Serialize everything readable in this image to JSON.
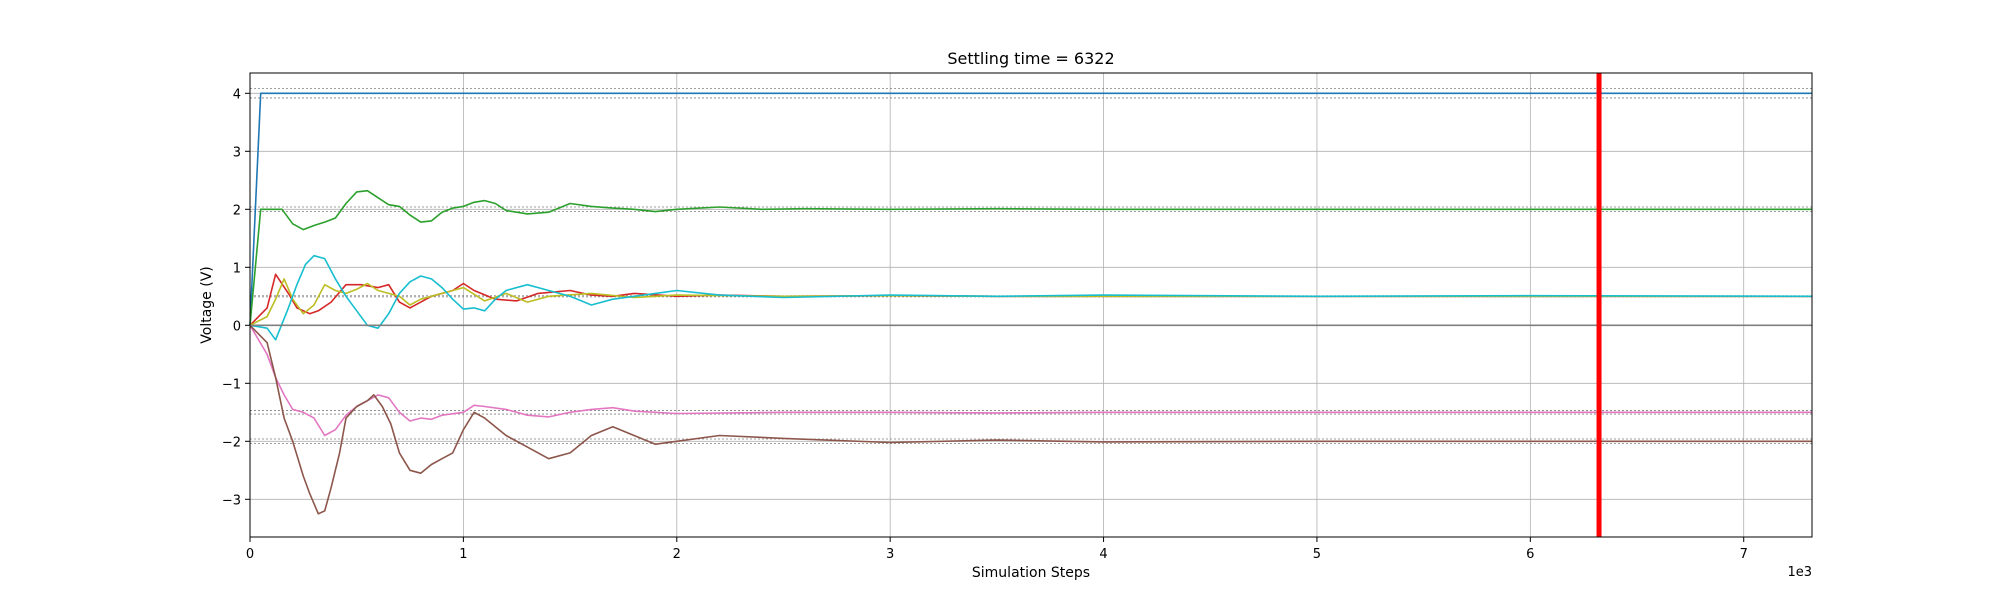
{
  "chart_data": {
    "type": "line",
    "title": "Settling time = 6322",
    "xlabel": "Simulation Steps",
    "ylabel": "Voltage (V)",
    "x_offset_label": "1e3",
    "xlim": [
      0,
      7.32
    ],
    "ylim": [
      -3.65,
      4.35
    ],
    "x_ticks": [
      0,
      1,
      2,
      3,
      4,
      5,
      6,
      7
    ],
    "y_ticks": [
      -3,
      -2,
      -1,
      0,
      1,
      2,
      3,
      4
    ],
    "x_tick_labels": [
      "0",
      "1",
      "2",
      "3",
      "4",
      "5",
      "6",
      "7"
    ],
    "y_tick_labels": [
      "−3",
      "−2",
      "−1",
      "0",
      "1",
      "2",
      "3",
      "4"
    ],
    "grid": true,
    "settling_time": 6.322,
    "settling_line_color": "#ff0000",
    "reference_levels": [
      {
        "value": 4.0,
        "band": 0.08
      },
      {
        "value": 2.0,
        "band": 0.04
      },
      {
        "value": 0.5,
        "band": 0.01
      },
      {
        "value": -1.5,
        "band": 0.03
      },
      {
        "value": -2.0,
        "band": 0.04
      }
    ],
    "series": [
      {
        "color": "#1f77b4",
        "x": [
          0,
          0.05,
          1,
          2,
          4,
          6,
          7.32
        ],
        "y": [
          0,
          4.0,
          4.0,
          4.0,
          4.0,
          4.0,
          4.0
        ]
      },
      {
        "color": "#2ca02c",
        "x": [
          0,
          0.05,
          0.15,
          0.2,
          0.25,
          0.3,
          0.35,
          0.4,
          0.45,
          0.5,
          0.55,
          0.6,
          0.65,
          0.7,
          0.75,
          0.8,
          0.85,
          0.9,
          0.95,
          1.0,
          1.05,
          1.1,
          1.15,
          1.2,
          1.3,
          1.4,
          1.5,
          1.6,
          1.7,
          1.8,
          1.9,
          2.0,
          2.2,
          2.4,
          2.6,
          3.0,
          3.5,
          4.0,
          5.0,
          6.0,
          7.32
        ],
        "y": [
          0,
          2.0,
          2.0,
          1.75,
          1.65,
          1.72,
          1.78,
          1.85,
          2.1,
          2.3,
          2.32,
          2.2,
          2.08,
          2.05,
          1.9,
          1.78,
          1.8,
          1.95,
          2.02,
          2.05,
          2.12,
          2.15,
          2.1,
          1.98,
          1.92,
          1.95,
          2.1,
          2.05,
          2.02,
          2.0,
          1.96,
          2.0,
          2.04,
          2.0,
          2.01,
          2.0,
          2.01,
          2.0,
          2.0,
          2.0,
          2.0
        ]
      },
      {
        "color": "#d62728",
        "x": [
          0,
          0.08,
          0.12,
          0.18,
          0.22,
          0.28,
          0.32,
          0.38,
          0.45,
          0.52,
          0.6,
          0.65,
          0.7,
          0.75,
          0.85,
          0.95,
          1.0,
          1.05,
          1.15,
          1.25,
          1.35,
          1.5,
          1.6,
          1.7,
          1.8,
          2.0,
          2.2,
          2.5,
          3.0,
          3.5,
          4.0,
          5.0,
          6.0,
          7.32
        ],
        "y": [
          0,
          0.3,
          0.88,
          0.55,
          0.3,
          0.2,
          0.25,
          0.4,
          0.7,
          0.7,
          0.65,
          0.7,
          0.4,
          0.3,
          0.5,
          0.6,
          0.72,
          0.6,
          0.45,
          0.42,
          0.55,
          0.6,
          0.52,
          0.5,
          0.55,
          0.5,
          0.52,
          0.5,
          0.51,
          0.5,
          0.5,
          0.5,
          0.5,
          0.5
        ]
      },
      {
        "color": "#bcbd22",
        "x": [
          0,
          0.08,
          0.12,
          0.16,
          0.2,
          0.25,
          0.3,
          0.35,
          0.4,
          0.45,
          0.5,
          0.55,
          0.6,
          0.65,
          0.7,
          0.75,
          0.8,
          0.9,
          1.0,
          1.1,
          1.2,
          1.3,
          1.4,
          1.6,
          1.8,
          2.0,
          2.5,
          3.0,
          3.5,
          4.0,
          5.0,
          6.0,
          7.32
        ],
        "y": [
          0,
          0.15,
          0.45,
          0.8,
          0.45,
          0.2,
          0.35,
          0.7,
          0.6,
          0.55,
          0.62,
          0.72,
          0.6,
          0.55,
          0.5,
          0.35,
          0.45,
          0.55,
          0.65,
          0.42,
          0.55,
          0.4,
          0.5,
          0.55,
          0.48,
          0.52,
          0.5,
          0.51,
          0.5,
          0.5,
          0.5,
          0.5,
          0.5
        ]
      },
      {
        "color": "#17becf",
        "x": [
          0,
          0.08,
          0.12,
          0.18,
          0.22,
          0.26,
          0.3,
          0.35,
          0.4,
          0.45,
          0.5,
          0.55,
          0.6,
          0.65,
          0.7,
          0.75,
          0.8,
          0.85,
          0.9,
          0.95,
          1.0,
          1.05,
          1.1,
          1.15,
          1.2,
          1.3,
          1.4,
          1.5,
          1.6,
          1.7,
          1.8,
          1.9,
          2.0,
          2.2,
          2.5,
          3.0,
          3.5,
          4.0,
          5.0,
          6.0,
          7.32
        ],
        "y": [
          0,
          -0.05,
          -0.25,
          0.3,
          0.7,
          1.05,
          1.2,
          1.15,
          0.8,
          0.5,
          0.25,
          0.0,
          -0.05,
          0.2,
          0.55,
          0.75,
          0.85,
          0.8,
          0.65,
          0.45,
          0.28,
          0.3,
          0.25,
          0.45,
          0.6,
          0.7,
          0.6,
          0.5,
          0.35,
          0.45,
          0.5,
          0.55,
          0.6,
          0.52,
          0.48,
          0.52,
          0.5,
          0.52,
          0.5,
          0.51,
          0.5
        ]
      },
      {
        "color": "#e377c2",
        "x": [
          0,
          0.08,
          0.12,
          0.16,
          0.2,
          0.25,
          0.3,
          0.35,
          0.4,
          0.45,
          0.5,
          0.55,
          0.6,
          0.65,
          0.7,
          0.75,
          0.8,
          0.85,
          0.9,
          1.0,
          1.05,
          1.1,
          1.2,
          1.3,
          1.4,
          1.5,
          1.6,
          1.7,
          1.8,
          2.0,
          2.5,
          3.0,
          3.5,
          4.0,
          5.0,
          6.0,
          7.32
        ],
        "y": [
          0,
          -0.5,
          -0.9,
          -1.2,
          -1.45,
          -1.5,
          -1.6,
          -1.9,
          -1.8,
          -1.55,
          -1.4,
          -1.3,
          -1.2,
          -1.25,
          -1.5,
          -1.65,
          -1.6,
          -1.62,
          -1.55,
          -1.5,
          -1.38,
          -1.4,
          -1.45,
          -1.55,
          -1.58,
          -1.5,
          -1.45,
          -1.42,
          -1.48,
          -1.52,
          -1.5,
          -1.5,
          -1.51,
          -1.5,
          -1.5,
          -1.5,
          -1.5
        ]
      },
      {
        "color": "#8c564b",
        "x": [
          0,
          0.08,
          0.12,
          0.16,
          0.2,
          0.25,
          0.28,
          0.32,
          0.35,
          0.38,
          0.42,
          0.45,
          0.5,
          0.55,
          0.58,
          0.62,
          0.66,
          0.7,
          0.75,
          0.8,
          0.85,
          0.9,
          0.95,
          1.0,
          1.05,
          1.1,
          1.2,
          1.3,
          1.4,
          1.5,
          1.6,
          1.7,
          1.8,
          1.9,
          2.0,
          2.2,
          2.5,
          3.0,
          3.5,
          4.0,
          5.0,
          6.0,
          7.32
        ],
        "y": [
          0,
          -0.3,
          -0.9,
          -1.6,
          -2.0,
          -2.6,
          -2.9,
          -3.25,
          -3.2,
          -2.8,
          -2.2,
          -1.6,
          -1.4,
          -1.3,
          -1.2,
          -1.4,
          -1.7,
          -2.2,
          -2.5,
          -2.55,
          -2.4,
          -2.3,
          -2.2,
          -1.8,
          -1.5,
          -1.6,
          -1.9,
          -2.1,
          -2.3,
          -2.2,
          -1.9,
          -1.75,
          -1.9,
          -2.05,
          -2.0,
          -1.9,
          -1.95,
          -2.02,
          -1.98,
          -2.01,
          -2.0,
          -2.0,
          -2.0
        ]
      },
      {
        "color": "#7f7f7f",
        "x": [
          0,
          7.32
        ],
        "y": [
          0,
          0
        ]
      }
    ]
  }
}
